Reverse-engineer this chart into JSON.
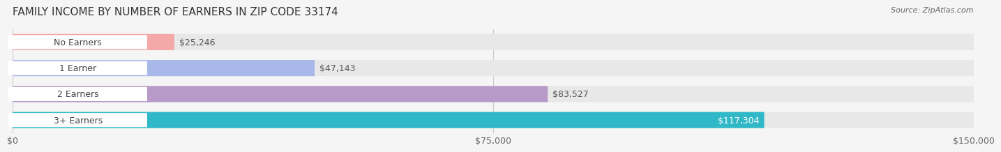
{
  "title": "FAMILY INCOME BY NUMBER OF EARNERS IN ZIP CODE 33174",
  "source": "Source: ZipAtlas.com",
  "categories": [
    "No Earners",
    "1 Earner",
    "2 Earners",
    "3+ Earners"
  ],
  "values": [
    25246,
    47143,
    83527,
    117304
  ],
  "bar_colors": [
    "#f4a8a8",
    "#a8b8e8",
    "#b89ac8",
    "#30b8c8"
  ],
  "label_colors": [
    "#d07878",
    "#7888c8",
    "#9878b8",
    "#20a0b0"
  ],
  "value_labels": [
    "$25,246",
    "$47,143",
    "$83,527",
    "$117,304"
  ],
  "value_label_inside": [
    false,
    false,
    false,
    true
  ],
  "xlim": [
    0,
    150000
  ],
  "xticks": [
    0,
    75000,
    150000
  ],
  "xtick_labels": [
    "$0",
    "$75,000",
    "$150,000"
  ],
  "background_color": "#f5f5f5",
  "bar_background_color": "#e8e8e8",
  "title_fontsize": 11,
  "source_fontsize": 8,
  "tick_fontsize": 9,
  "value_fontsize": 9,
  "label_fontsize": 9,
  "bar_height": 0.62,
  "fig_width": 14.06,
  "fig_height": 2.33
}
